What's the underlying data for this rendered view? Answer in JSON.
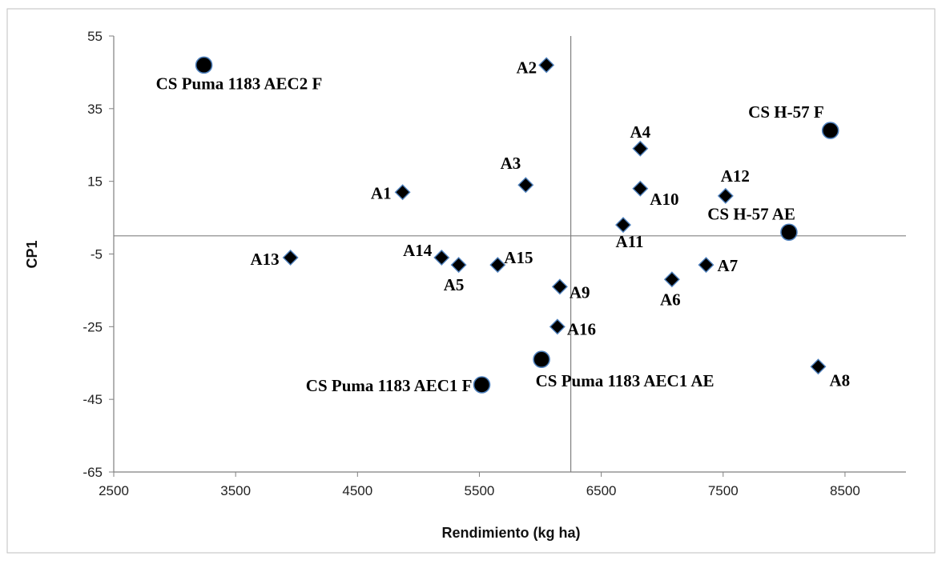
{
  "chart_data": {
    "type": "scatter",
    "title": "",
    "xlabel": "Rendimiento (kg ha)",
    "ylabel": "CP1",
    "xlim": [
      2500,
      9000
    ],
    "ylim": [
      -65,
      55
    ],
    "x_ticks": [
      "2500",
      "3500",
      "4500",
      "5500",
      "6500",
      "7500",
      "8500"
    ],
    "y_ticks": [
      "55",
      "35",
      "15",
      "-5",
      "-25",
      "-45",
      "-65"
    ],
    "reference_lines": {
      "x": 6250,
      "y": 0
    },
    "grid": false,
    "series": [
      {
        "marker": "diamond",
        "color": "#000000",
        "points": [
          {
            "label": "A1",
            "x": 4870,
            "y": 12
          },
          {
            "label": "A2",
            "x": 6050,
            "y": 47
          },
          {
            "label": "A3",
            "x": 5880,
            "y": 14
          },
          {
            "label": "A4",
            "x": 6820,
            "y": 24
          },
          {
            "label": "A5",
            "x": 5330,
            "y": -8
          },
          {
            "label": "A6",
            "x": 7080,
            "y": -12
          },
          {
            "label": "A7",
            "x": 7360,
            "y": -8
          },
          {
            "label": "A8",
            "x": 8280,
            "y": -36
          },
          {
            "label": "A9",
            "x": 6160,
            "y": -14
          },
          {
            "label": "A10",
            "x": 6820,
            "y": 13
          },
          {
            "label": "A11",
            "x": 6680,
            "y": 3
          },
          {
            "label": "A12",
            "x": 7520,
            "y": 11
          },
          {
            "label": "A13",
            "x": 3950,
            "y": -6
          },
          {
            "label": "A14",
            "x": 5190,
            "y": -6
          },
          {
            "label": "A15",
            "x": 5650,
            "y": -8
          },
          {
            "label": "A16",
            "x": 6140,
            "y": -25
          }
        ]
      },
      {
        "marker": "circle",
        "color": "#000000",
        "points": [
          {
            "label": "CS Puma 1183 AEC2 F",
            "x": 3240,
            "y": 47
          },
          {
            "label": "CS H-57 F",
            "x": 8380,
            "y": 29
          },
          {
            "label": "CS H-57 AE",
            "x": 8040,
            "y": 1
          },
          {
            "label": "CS Puma 1183 AEC1 AE",
            "x": 6010,
            "y": -34
          },
          {
            "label": "CS Puma 1183 AEC1 F",
            "x": 5520,
            "y": -41
          }
        ]
      }
    ]
  }
}
